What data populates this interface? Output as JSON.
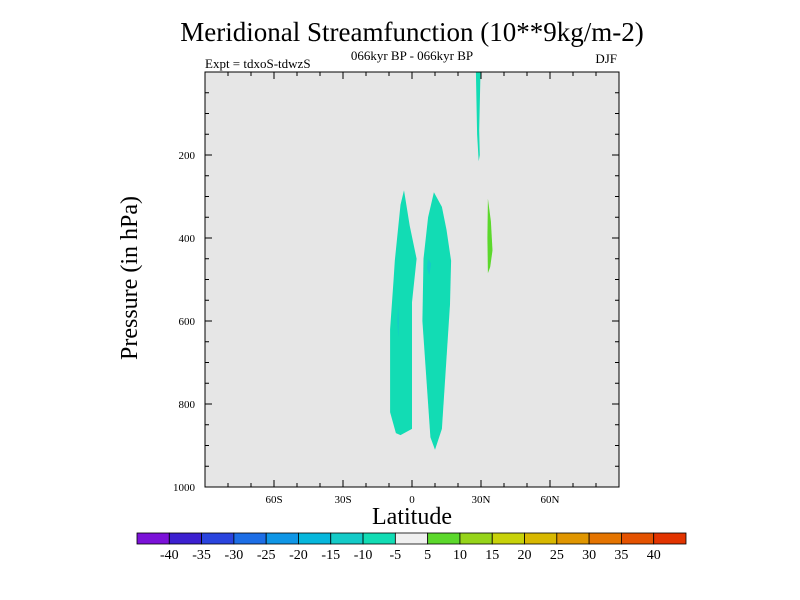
{
  "chart_data": {
    "type": "heatmap",
    "title": "Meridional Streamfunction (10**9kg/m-2)",
    "subtitle": "066kyr BP - 066kyr BP",
    "season": "DJF",
    "experiment": "Expt = tdxoS-tdwzS",
    "xlabel": "Latitude",
    "ylabel": "Pressure (in hPa)",
    "xlim": [
      -90,
      90
    ],
    "ylim": [
      1000,
      0
    ],
    "y_inverted": true,
    "background_color": "#e6e6e6",
    "x_ticks": [
      {
        "value": -60,
        "label": "60S"
      },
      {
        "value": -30,
        "label": "30S"
      },
      {
        "value": 0,
        "label": "0"
      },
      {
        "value": 30,
        "label": "30N"
      },
      {
        "value": 60,
        "label": "60N"
      }
    ],
    "y_ticks": [
      {
        "value": 200,
        "label": "200"
      },
      {
        "value": 400,
        "label": "400"
      },
      {
        "value": 600,
        "label": "600"
      },
      {
        "value": 800,
        "label": "800"
      },
      {
        "value": 1000,
        "label": "1000"
      }
    ],
    "x_minor_step": 10,
    "y_minor_step": 50,
    "colorbar": {
      "colors": [
        "#7b12d8",
        "#3c20d0",
        "#2a44de",
        "#1d6ee6",
        "#0f96e6",
        "#06b7dc",
        "#14cbc8",
        "#12dcb4",
        "#f0f0f0",
        "#5cd82c",
        "#96d41a",
        "#c8d20a",
        "#d8b800",
        "#e09600",
        "#e47400",
        "#e45200",
        "#e23400"
      ],
      "labels": [
        "-40",
        "-35",
        "-30",
        "-25",
        "-20",
        "-15",
        "-10",
        "-5",
        "5",
        "10",
        "15",
        "20",
        "25",
        "30",
        "35",
        "40"
      ]
    },
    "regions": [
      {
        "name": "negative-cell-southern",
        "range": "-10 to -5",
        "color": "#12dcb4",
        "points": [
          [
            -3.5,
            285
          ],
          [
            -1,
            370
          ],
          [
            2,
            450
          ],
          [
            0,
            555
          ],
          [
            0,
            860
          ],
          [
            -5,
            875
          ],
          [
            -7,
            870
          ],
          [
            -9.5,
            820
          ],
          [
            -9.5,
            620
          ],
          [
            -8,
            500
          ],
          [
            -7.5,
            455
          ],
          [
            -5,
            320
          ],
          [
            -3.5,
            285
          ]
        ]
      },
      {
        "name": "inner-spot-southern",
        "range": "-15 to -10",
        "color": "#14cbc8",
        "points": [
          [
            -6,
            560
          ],
          [
            -5.6,
            600
          ],
          [
            -6,
            640
          ],
          [
            -6.4,
            600
          ],
          [
            -6,
            560
          ]
        ]
      },
      {
        "name": "negative-cell-northern",
        "range": "-10 to -5",
        "color": "#12dcb4",
        "points": [
          [
            9.5,
            290
          ],
          [
            13,
            325
          ],
          [
            15,
            380
          ],
          [
            17,
            455
          ],
          [
            16.5,
            560
          ],
          [
            13,
            860
          ],
          [
            10,
            910
          ],
          [
            8,
            880
          ],
          [
            4.5,
            600
          ],
          [
            5,
            450
          ],
          [
            7,
            350
          ],
          [
            9.5,
            290
          ]
        ]
      },
      {
        "name": "inner-spot-northern",
        "range": "-15 to -10",
        "color": "#14cbc8",
        "points": [
          [
            7,
            450
          ],
          [
            8.3,
            462
          ],
          [
            7.5,
            490
          ],
          [
            6.5,
            472
          ],
          [
            7,
            450
          ]
        ]
      },
      {
        "name": "negative-column-upper",
        "range": "-10 to -5",
        "color": "#12dcb4",
        "points": [
          [
            27.8,
            0
          ],
          [
            29.8,
            0
          ],
          [
            29.2,
            140
          ],
          [
            29.5,
            200
          ],
          [
            29,
            215
          ],
          [
            28.3,
            150
          ],
          [
            27.8,
            0
          ]
        ]
      },
      {
        "name": "positive-cell",
        "range": "5 to 10",
        "color": "#5cd82c",
        "points": [
          [
            33,
            305
          ],
          [
            34.3,
            360
          ],
          [
            35,
            430
          ],
          [
            34,
            470
          ],
          [
            33,
            485
          ],
          [
            32.8,
            400
          ],
          [
            33,
            305
          ]
        ]
      }
    ]
  }
}
